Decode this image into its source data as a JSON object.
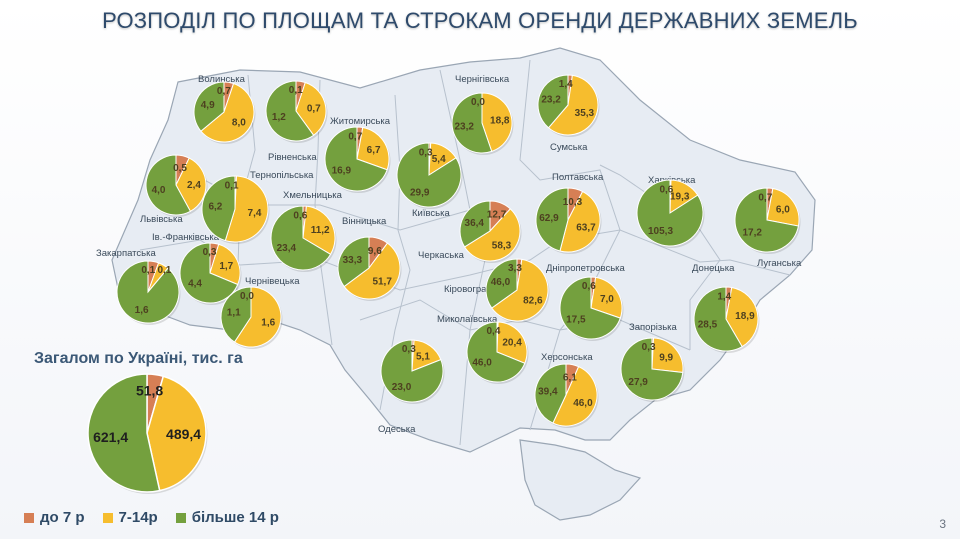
{
  "title": "РОЗПОДІЛ ПО ПЛОЩАМ ТА СТРОКАМ ОРЕНДИ ДЕРЖАВНИХ ЗЕМЕЛЬ",
  "colors": {
    "short": "#d67f55",
    "mid": "#f6bd2e",
    "long": "#74a03e",
    "map": "#e7ecf3",
    "border": "#9aa6b4"
  },
  "total_title": "Загалом по Україні, тис. га",
  "legend": [
    {
      "label": "до 7 р",
      "color": "#d67f55"
    },
    {
      "label": "7-14р",
      "color": "#f6bd2e"
    },
    {
      "label": "більше 14 р",
      "color": "#74a03e"
    }
  ],
  "page_number": "3",
  "chart_data": {
    "type": "pie",
    "series_names": [
      "до 7 р",
      "7-14р",
      "більше 14 р"
    ],
    "total": {
      "values": [
        51.8,
        489.4,
        621.4
      ],
      "labels": [
        "51,8",
        "489,4",
        "621,4"
      ]
    },
    "regions": [
      {
        "name": "Волинська",
        "values": [
          0.7,
          8.0,
          4.9
        ],
        "labels": [
          "0,7",
          "8,0",
          "4,9"
        ]
      },
      {
        "name": "Рівненська",
        "values": [
          0.1,
          0.7,
          1.2
        ],
        "labels": [
          "0,1",
          "0,7",
          "1,2"
        ]
      },
      {
        "name": "Житомирська",
        "values": [
          0.7,
          6.7,
          16.9
        ],
        "labels": [
          "0,7",
          "6,7",
          "16,9"
        ]
      },
      {
        "name": "Чернігівська",
        "values": [
          0.0,
          18.8,
          23.2
        ],
        "labels": [
          "0,0",
          "18,8",
          "23,2"
        ]
      },
      {
        "name": "Сумська",
        "values": [
          1.4,
          35.3,
          23.2
        ],
        "labels": [
          "1,4",
          "35,3",
          "23,2"
        ]
      },
      {
        "name": "Львівська",
        "values": [
          0.5,
          2.4,
          4.0
        ],
        "labels": [
          "0,5",
          "2,4",
          "4,0"
        ]
      },
      {
        "name": "Тернопільська",
        "values": [
          0.1,
          7.4,
          6.2
        ],
        "labels": [
          "0,1",
          "7,4",
          "6,2"
        ]
      },
      {
        "name": "Хмельницька",
        "values": [
          0.6,
          11.2,
          23.4
        ],
        "labels": [
          "0,6",
          "11,2",
          "23,4"
        ]
      },
      {
        "name": "Київська",
        "values": [
          0.3,
          5.4,
          29.9
        ],
        "labels": [
          "0,3",
          "5,4",
          "29,9"
        ]
      },
      {
        "name": "Полтавська",
        "values": [
          10.3,
          63.7,
          62.9
        ],
        "labels": [
          "10,3",
          "63,7",
          "62,9"
        ]
      },
      {
        "name": "Харківська",
        "values": [
          0.6,
          19.3,
          105.3
        ],
        "labels": [
          "0,6",
          "19,3",
          "105,3"
        ]
      },
      {
        "name": "Луганська",
        "values": [
          0.7,
          6.0,
          17.2
        ],
        "labels": [
          "0,7",
          "6,0",
          "17,2"
        ]
      },
      {
        "name": "Черкаська",
        "values": [
          12.7,
          58.3,
          36.4
        ],
        "labels": [
          "12,7",
          "58,3",
          "36,4"
        ]
      },
      {
        "name": "Вінницька",
        "values": [
          9.6,
          51.7,
          33.3
        ],
        "labels": [
          "9,6",
          "51,7",
          "33,3"
        ]
      },
      {
        "name": "Ів.-Франківська",
        "values": [
          0.3,
          1.7,
          4.4
        ],
        "labels": [
          "0,3",
          "1,7",
          "4,4"
        ]
      },
      {
        "name": "Закарпатська",
        "values": [
          0.1,
          0.1,
          1.6
        ],
        "labels": [
          "0,1",
          "0,1",
          "1,6"
        ]
      },
      {
        "name": "Чернівецька",
        "values": [
          0.0,
          1.6,
          1.1
        ],
        "labels": [
          "0,0",
          "1,6",
          "1,1"
        ]
      },
      {
        "name": "Кіровоградська",
        "values": [
          3.3,
          82.6,
          46.0
        ],
        "labels": [
          "3,3",
          "82,6",
          "46,0"
        ]
      },
      {
        "name": "Дніпропетровська",
        "values": [
          0.6,
          7.0,
          17.5
        ],
        "labels": [
          "0,6",
          "7,0",
          "17,5"
        ]
      },
      {
        "name": "Донецька",
        "values": [
          1.4,
          18.9,
          28.5
        ],
        "labels": [
          "1,4",
          "18,9",
          "28,5"
        ]
      },
      {
        "name": "Миколаївська",
        "values": [
          0.4,
          20.4,
          46.0
        ],
        "labels": [
          "0,4",
          "20,4",
          "46,0"
        ]
      },
      {
        "name": "Одеська",
        "values": [
          0.3,
          5.1,
          23.0
        ],
        "labels": [
          "0,3",
          "5,1",
          "23,0"
        ]
      },
      {
        "name": "Херсонська",
        "values": [
          6.1,
          46.0,
          39.4
        ],
        "labels": [
          "6,1",
          "46,0",
          "39,4"
        ]
      },
      {
        "name": "Запорізька",
        "values": [
          0.3,
          9.9,
          27.9
        ],
        "labels": [
          "0,3",
          "9,9",
          "27,9"
        ]
      }
    ]
  }
}
